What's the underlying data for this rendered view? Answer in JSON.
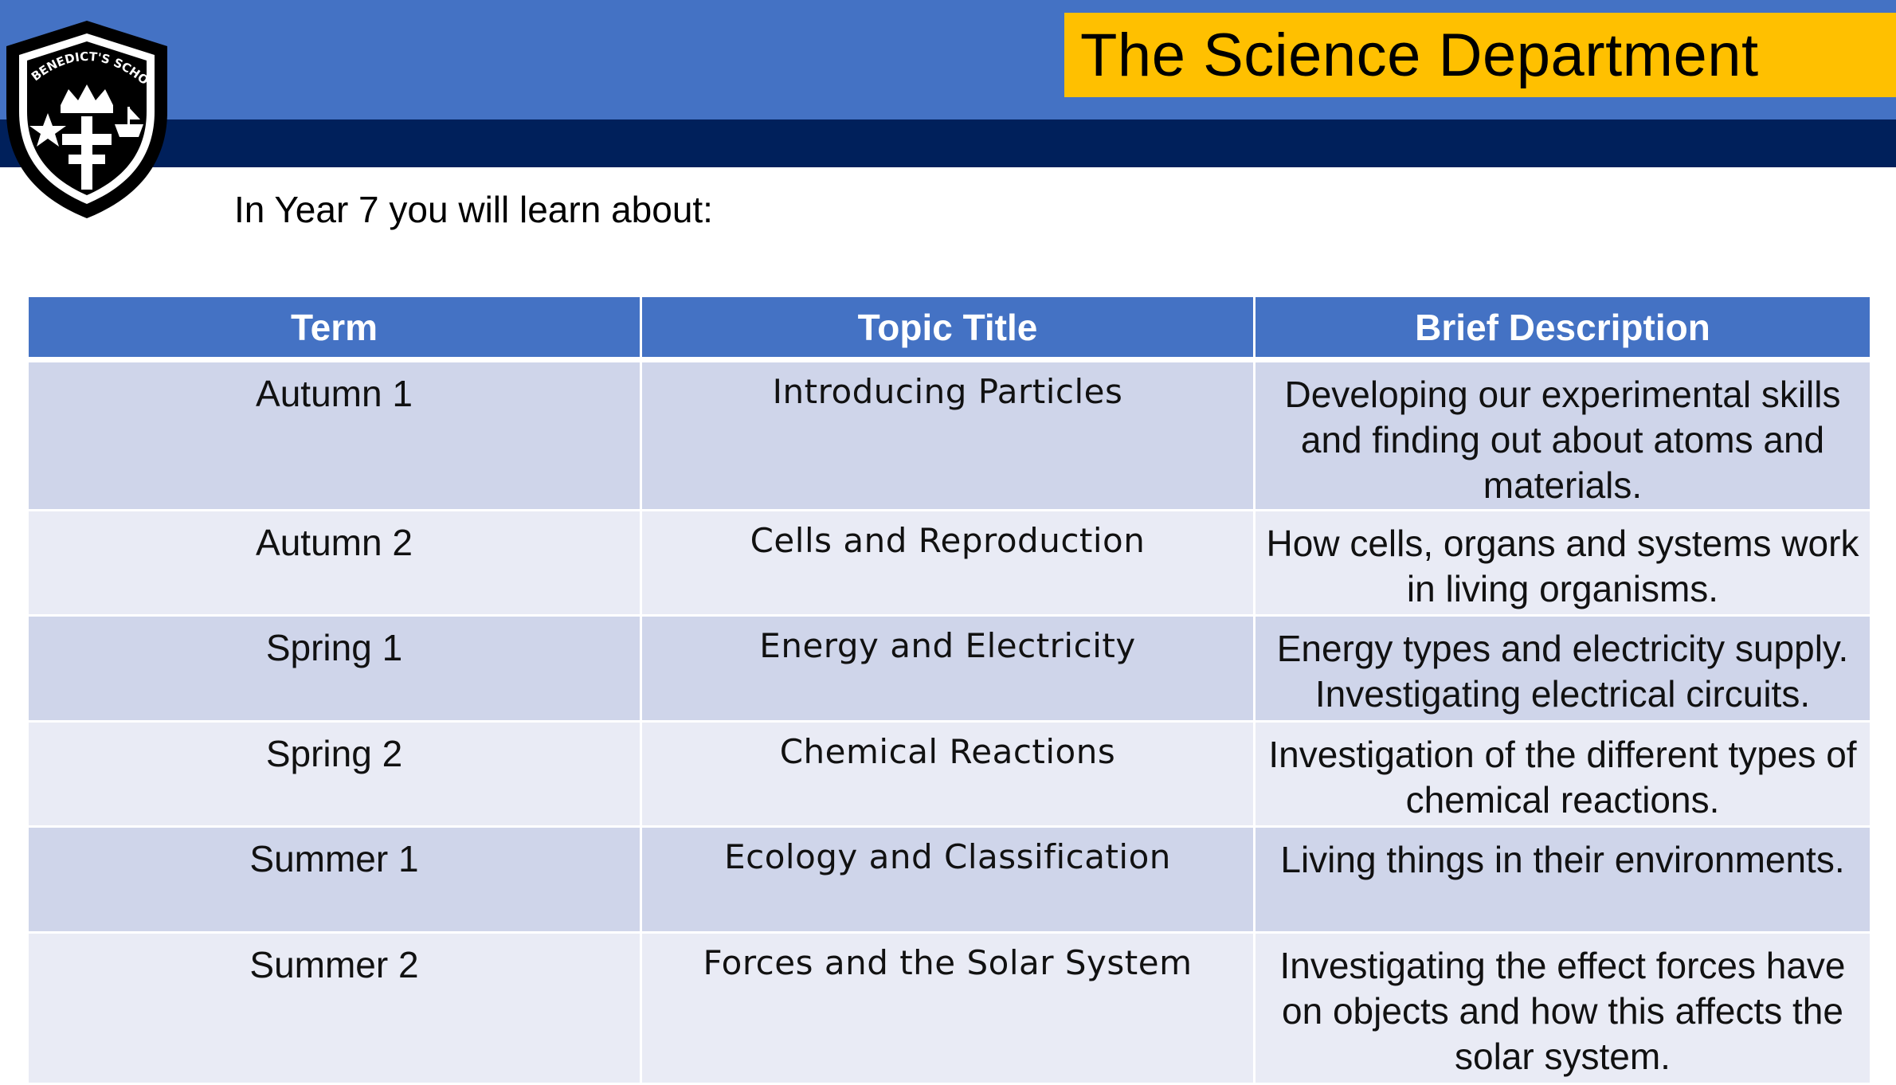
{
  "header": {
    "title": "The Science Department",
    "subtitle": "In Year 7 you will learn about:",
    "crest_text": "ST. BENEDICT'S SCHOOL"
  },
  "colors": {
    "header_blue": "#4472c4",
    "header_navy": "#00205b",
    "title_yellow": "#ffc000",
    "row_dark": "#cfd5ea",
    "row_light": "#e9ebf5"
  },
  "table": {
    "headers": [
      "Term",
      "Topic Title",
      "Brief Description"
    ],
    "rows": [
      {
        "term": "Autumn 1",
        "topic": "Introducing Particles",
        "description": "Developing our experimental skills and finding out about atoms and materials."
      },
      {
        "term": "Autumn 2",
        "topic": "Cells and Reproduction",
        "description": "How cells, organs and systems work in living organisms."
      },
      {
        "term": "Spring 1",
        "topic": "Energy and Electricity",
        "description": "Energy types and electricity supply. Investigating electrical circuits."
      },
      {
        "term": "Spring 2",
        "topic": "Chemical Reactions",
        "description": "Investigation of the different types of chemical reactions."
      },
      {
        "term": "Summer 1",
        "topic": "Ecology and Classification",
        "description": "Living things in their environments."
      },
      {
        "term": "Summer 2",
        "topic": "Forces and the Solar System",
        "description": "Investigating the effect forces have on objects and how this affects the solar system."
      }
    ]
  }
}
